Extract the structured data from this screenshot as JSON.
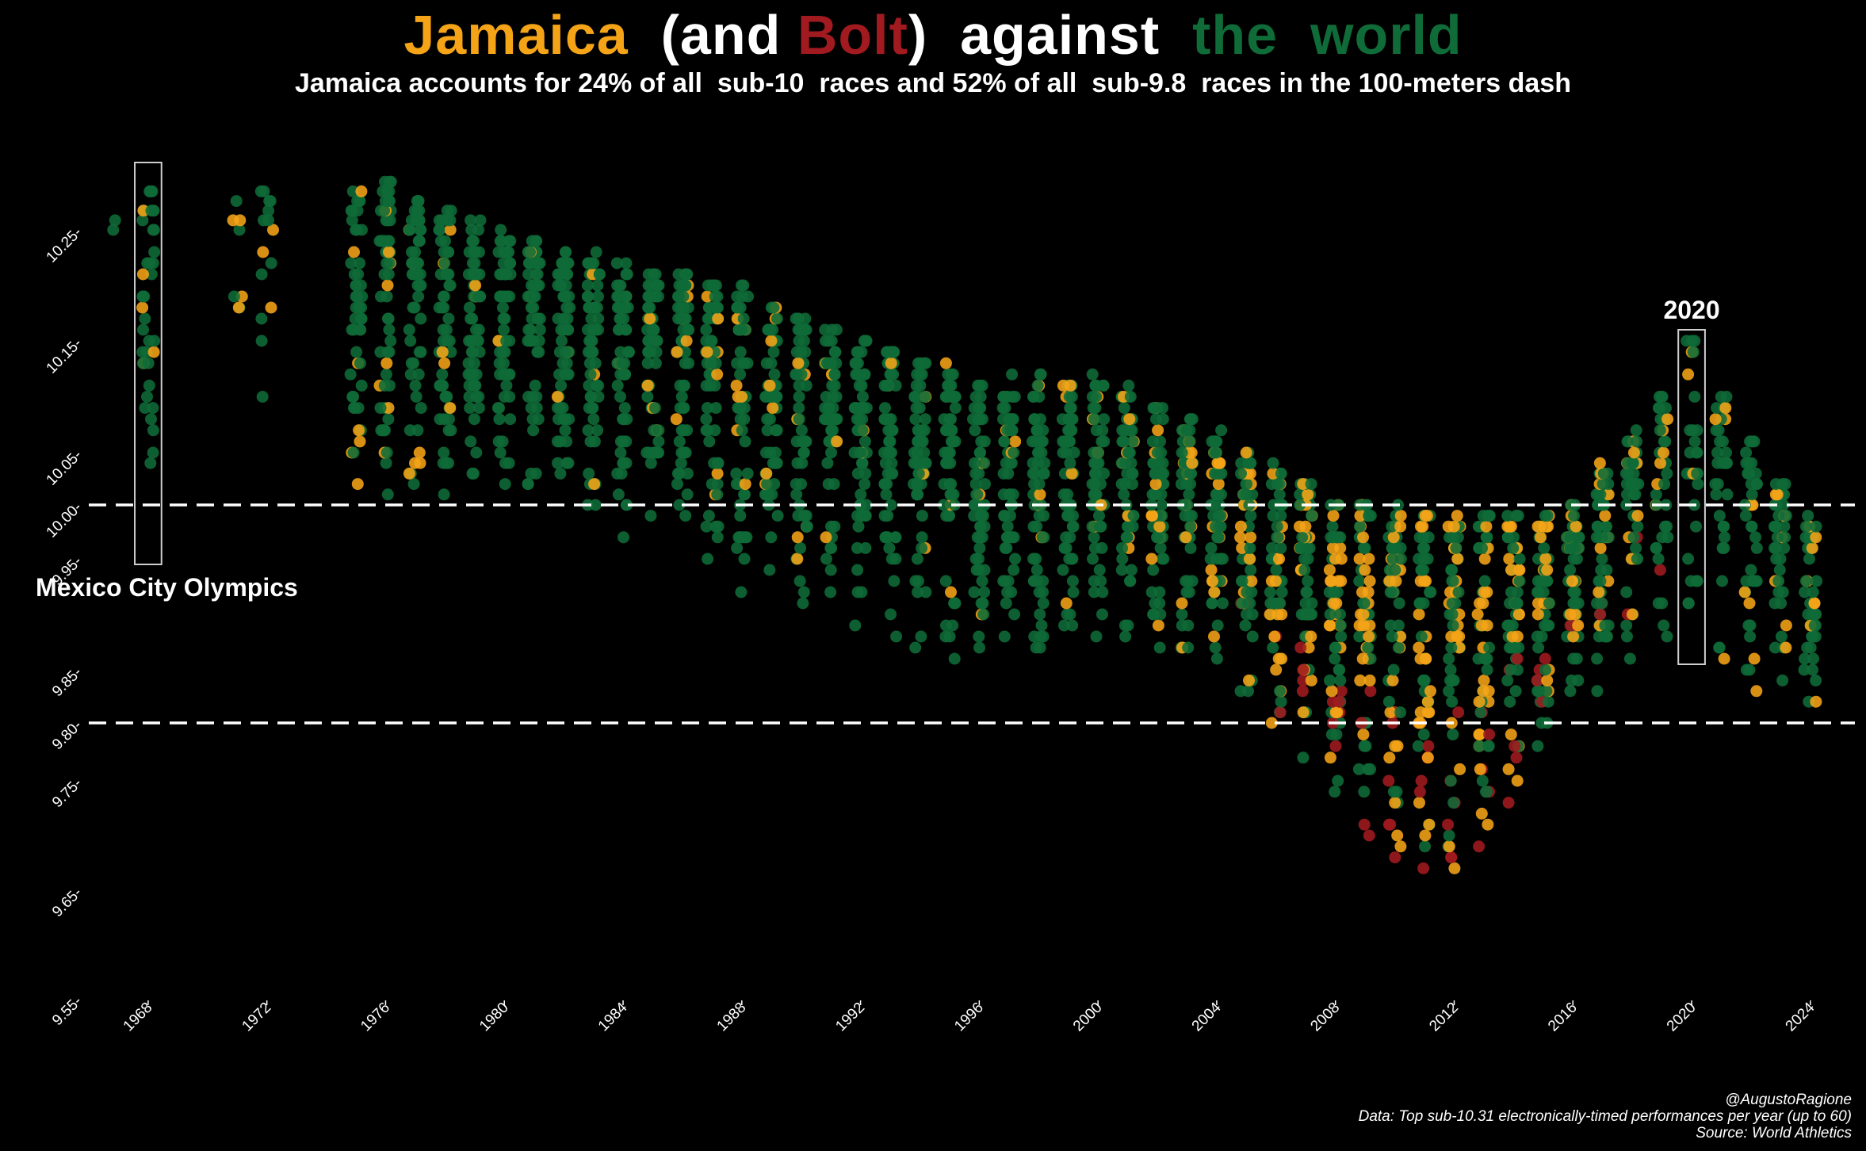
{
  "title": {
    "part1": "Jamaica",
    "part2": "(and",
    "part3": "Bolt",
    "part4": ")",
    "part5": "against",
    "part6": "the  world"
  },
  "subtitle": "Jamaica accounts for 24% of all  sub-10  races and 52% of all  sub-9.8  races in the 100-meters dash",
  "colors": {
    "jamaica": "#f5a417",
    "bolt": "#a11a1f",
    "world": "#0f6b38",
    "background": "#000000",
    "text": "#ffffff"
  },
  "caption": {
    "line1": "@AugustoRagione",
    "line2": "Data: Top sub-10.31 electronically-timed performances per year (up to 60)",
    "line3": "Source: World Athletics"
  },
  "chart_data": {
    "type": "scatter",
    "x_range": [
      1966,
      2025.5
    ],
    "y_range": [
      9.55,
      10.32
    ],
    "x_ticks": [
      "1968",
      "1972",
      "1976",
      "1980",
      "1984",
      "1988",
      "1992",
      "1996",
      "2000",
      "2004",
      "2008",
      "2012",
      "2016",
      "2020",
      "2024"
    ],
    "y_ticks": [
      "9.55",
      "9.65",
      "9.75",
      "9.80",
      "9.85",
      "9.95",
      "10.00",
      "10.05",
      "10.15",
      "10.25"
    ],
    "reference_lines": [
      10.0,
      9.8
    ],
    "grid": false,
    "legend": "title-colors",
    "series": [
      {
        "name": "Jamaica",
        "color": "#f5a417"
      },
      {
        "name": "Bolt",
        "color": "#a11a1f"
      },
      {
        "name": "the world",
        "color": "#0f6b38"
      }
    ],
    "annotations": [
      {
        "label": "Mexico City Olympics",
        "year": 1968,
        "ymin": 9.945,
        "ymax": 10.32
      },
      {
        "label": "2020",
        "year": 2020,
        "ymin": 9.855,
        "ymax": 10.16
      }
    ],
    "yearly_summary": [
      {
        "year": 1967,
        "best": 10.21,
        "worst": 10.26,
        "n": 2,
        "jam": 0,
        "bolt": 0
      },
      {
        "year": 1968,
        "best": 9.95,
        "worst": 10.3,
        "n": 40,
        "jam": 5,
        "bolt": 0
      },
      {
        "year": 1972,
        "best": 10.07,
        "worst": 10.3,
        "n": 15,
        "jam": 3,
        "bolt": 0
      },
      {
        "year": 1976,
        "best": 9.99,
        "worst": 10.3,
        "n": 60,
        "jam": 8,
        "bolt": 0
      },
      {
        "year": 1980,
        "best": 10.01,
        "worst": 10.25,
        "n": 60,
        "jam": 1,
        "bolt": 0
      },
      {
        "year": 1984,
        "best": 9.96,
        "worst": 10.22,
        "n": 60,
        "jam": 3,
        "bolt": 0
      },
      {
        "year": 1988,
        "best": 9.92,
        "worst": 10.2,
        "n": 60,
        "jam": 9,
        "bolt": 0
      },
      {
        "year": 1992,
        "best": 9.87,
        "worst": 10.15,
        "n": 60,
        "jam": 2,
        "bolt": 0
      },
      {
        "year": 1996,
        "best": 9.84,
        "worst": 10.12,
        "n": 60,
        "jam": 3,
        "bolt": 0
      },
      {
        "year": 2000,
        "best": 9.86,
        "worst": 10.12,
        "n": 60,
        "jam": 5,
        "bolt": 0
      },
      {
        "year": 2004,
        "best": 9.85,
        "worst": 10.07,
        "n": 60,
        "jam": 16,
        "bolt": 0
      },
      {
        "year": 2008,
        "best": 9.69,
        "worst": 10.01,
        "n": 60,
        "jam": 22,
        "bolt": 6
      },
      {
        "year": 2012,
        "best": 9.63,
        "worst": 9.99,
        "n": 60,
        "jam": 24,
        "bolt": 6
      },
      {
        "year": 2016,
        "best": 9.81,
        "worst": 10.0,
        "n": 60,
        "jam": 14,
        "bolt": 3
      },
      {
        "year": 2020,
        "best": 9.86,
        "worst": 10.15,
        "n": 30,
        "jam": 3,
        "bolt": 0
      },
      {
        "year": 2024,
        "best": 9.77,
        "worst": 9.99,
        "n": 45,
        "jam": 8,
        "bolt": 0
      }
    ]
  }
}
